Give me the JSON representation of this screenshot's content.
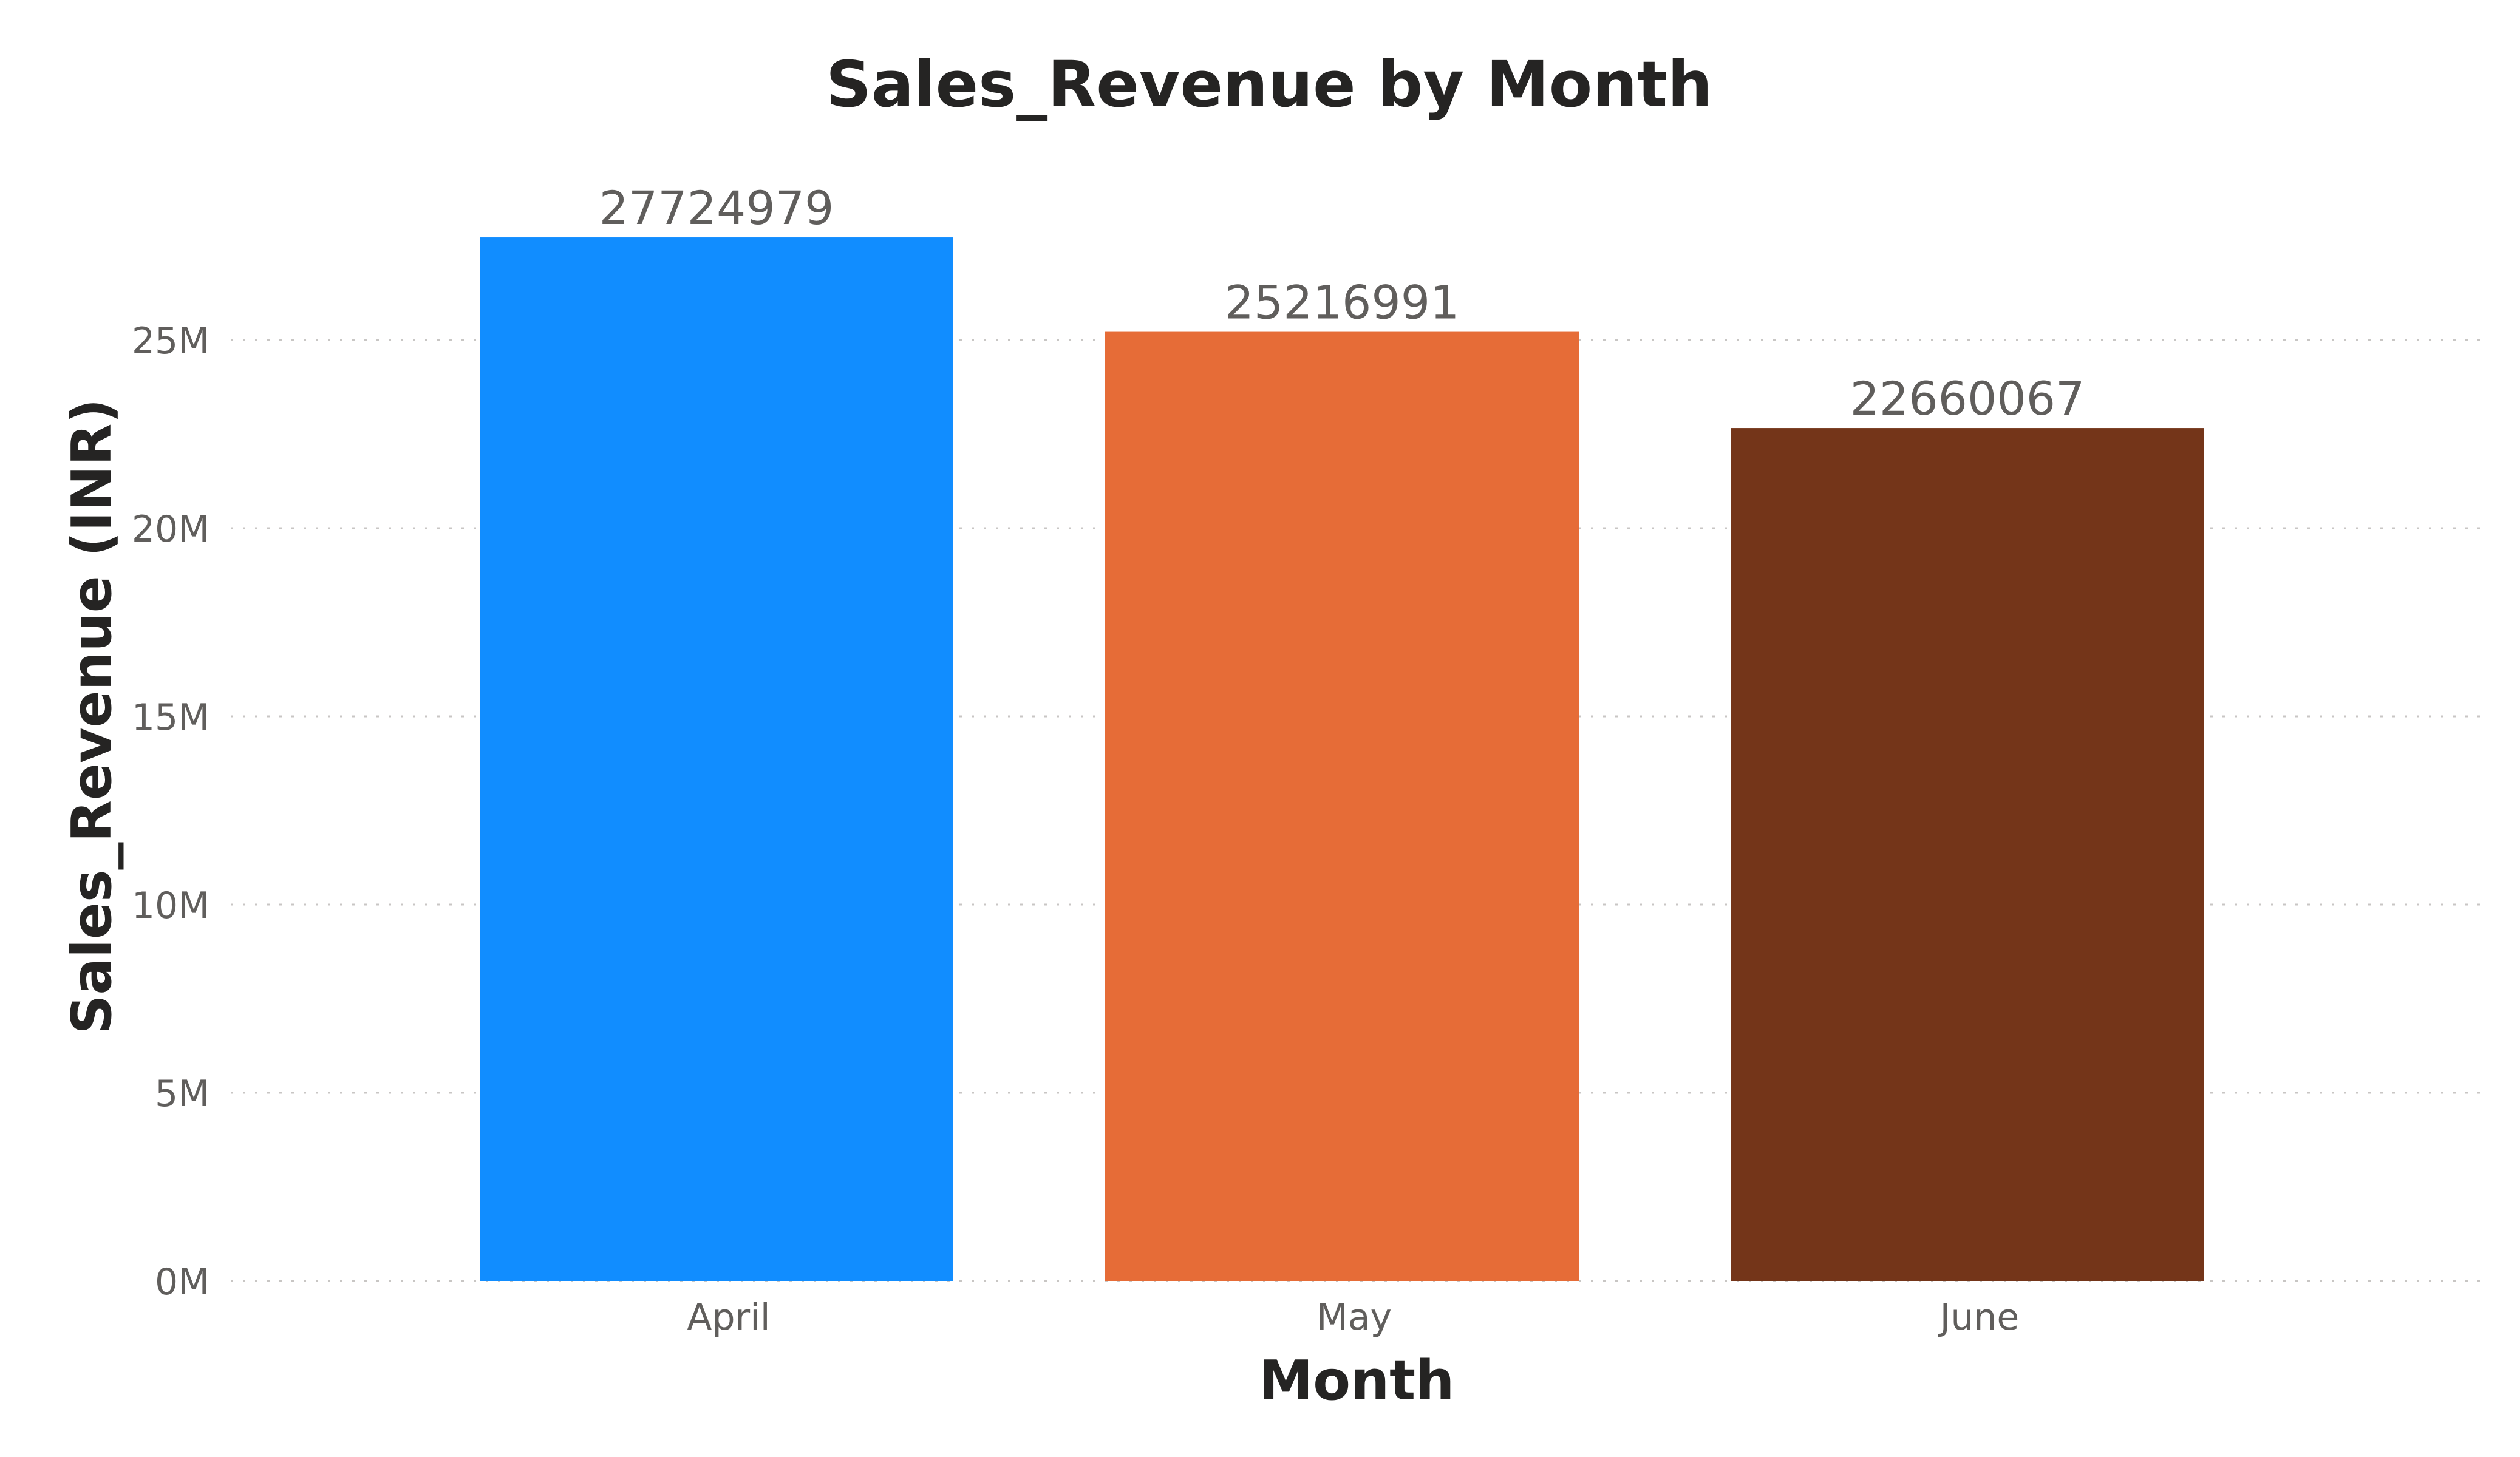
{
  "chart_data": {
    "type": "bar",
    "title": "Sales_Revenue by Month",
    "xlabel": "Month",
    "ylabel": "Sales_Revenue (INR)",
    "categories": [
      "April",
      "May",
      "June"
    ],
    "values": [
      27724979,
      25216991,
      22660067
    ],
    "data_labels": [
      "27724979",
      "25216991",
      "22660067"
    ],
    "colors": [
      "#118dff",
      "#e66c37",
      "#743519"
    ],
    "ylim": [
      0,
      30000000
    ],
    "y_ticks": [
      0,
      5000000,
      10000000,
      15000000,
      20000000,
      25000000
    ],
    "y_tick_labels": [
      "0M",
      "5M",
      "10M",
      "15M",
      "20M",
      "25M"
    ],
    "grid": true,
    "legend": "none"
  }
}
